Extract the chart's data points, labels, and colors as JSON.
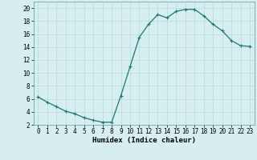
{
  "x": [
    0,
    1,
    2,
    3,
    4,
    5,
    6,
    7,
    8,
    9,
    10,
    11,
    12,
    13,
    14,
    15,
    16,
    17,
    18,
    19,
    20,
    21,
    22,
    23
  ],
  "y": [
    6.3,
    5.5,
    4.8,
    4.1,
    3.7,
    3.1,
    2.7,
    2.4,
    2.4,
    6.5,
    11.0,
    15.5,
    17.5,
    19.0,
    18.5,
    19.5,
    19.8,
    19.8,
    18.8,
    17.5,
    16.5,
    15.0,
    14.2,
    14.1
  ],
  "line_color": "#1a7a6e",
  "marker": "+",
  "marker_size": 3,
  "marker_linewidth": 0.8,
  "line_width": 0.9,
  "bg_color": "#d6eef0",
  "grid_color": "#b8d8db",
  "xlabel": "Humidex (Indice chaleur)",
  "xlim": [
    -0.5,
    23.5
  ],
  "ylim": [
    2,
    21
  ],
  "yticks": [
    2,
    4,
    6,
    8,
    10,
    12,
    14,
    16,
    18,
    20
  ],
  "xticks": [
    0,
    1,
    2,
    3,
    4,
    5,
    6,
    7,
    8,
    9,
    10,
    11,
    12,
    13,
    14,
    15,
    16,
    17,
    18,
    19,
    20,
    21,
    22,
    23
  ],
  "tick_fontsize": 5.5,
  "xlabel_fontsize": 6.5,
  "xlabel_fontweight": "bold"
}
